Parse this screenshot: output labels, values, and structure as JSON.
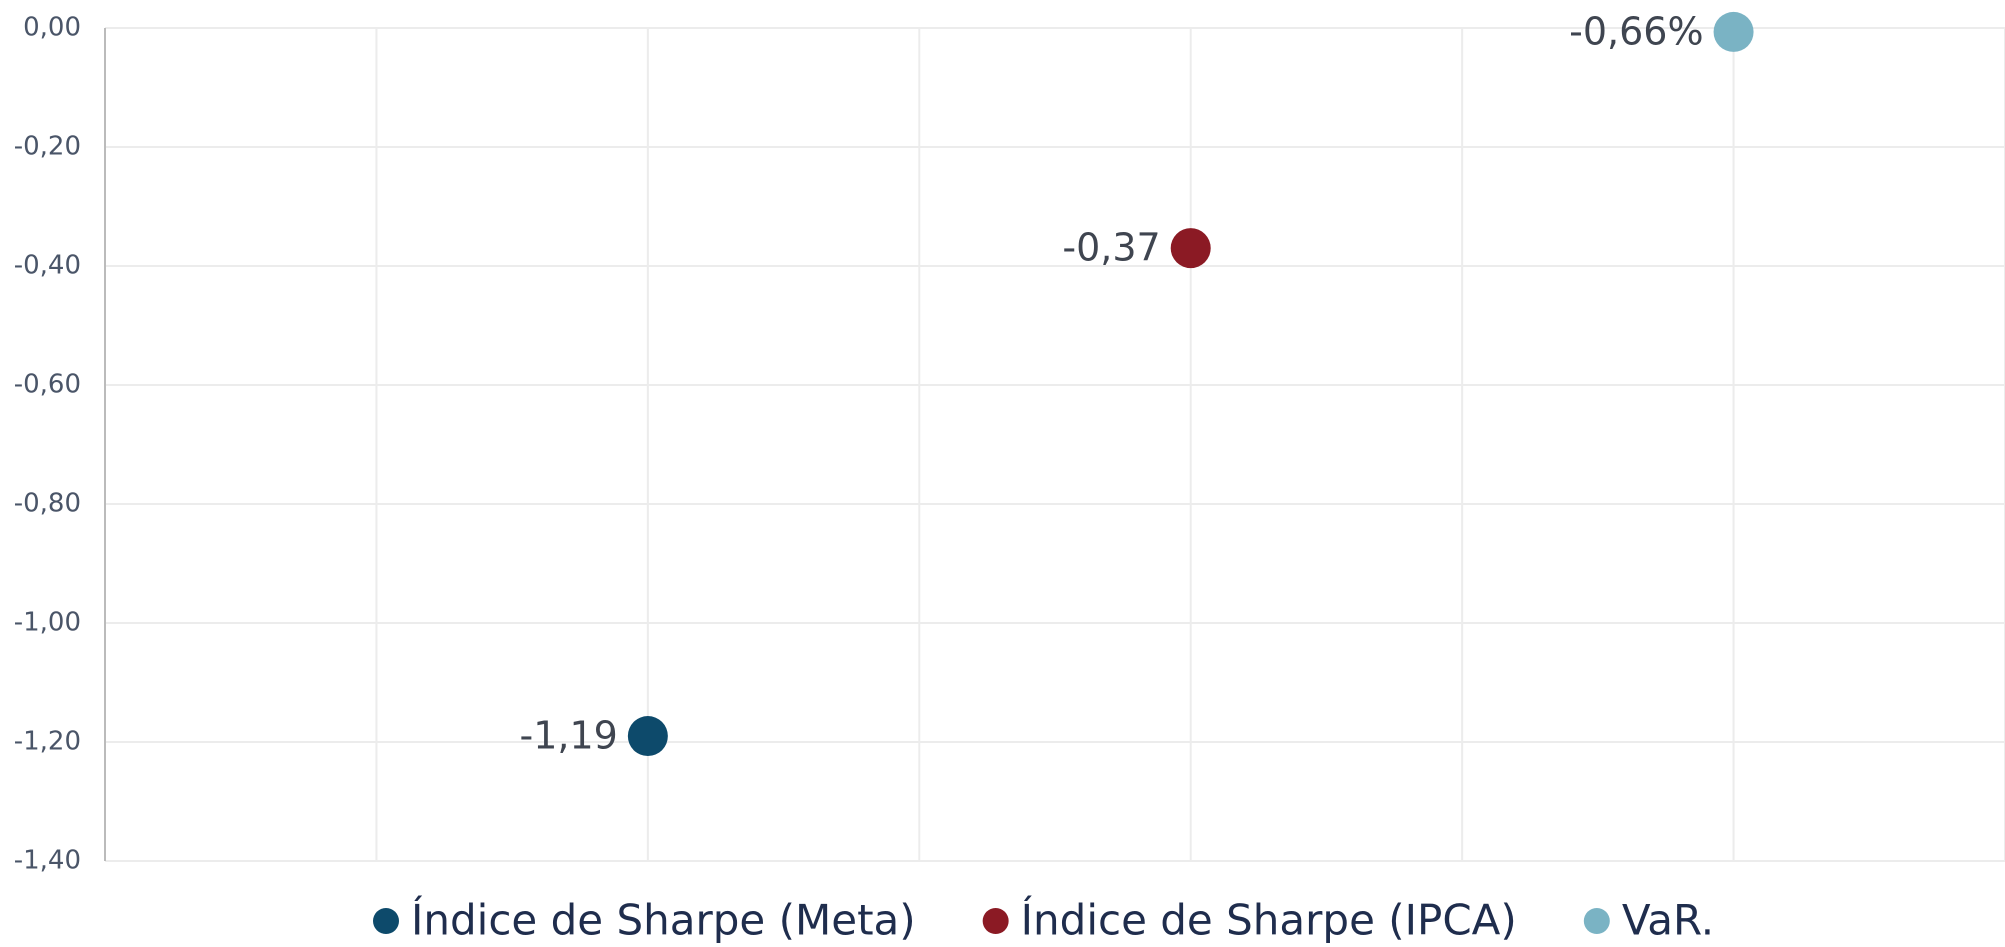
{
  "chart_data": {
    "type": "scatter",
    "series": [
      {
        "name": "Índice de Sharpe (Meta)",
        "color": "#0d4a6b",
        "x": [
          2
        ],
        "values": [
          -1.19
        ],
        "value_labels": [
          "-1,19"
        ]
      },
      {
        "name": "Índice de Sharpe (IPCA)",
        "color": "#8b1a24",
        "x": [
          4
        ],
        "values": [
          -0.37
        ],
        "value_labels": [
          "-0,37"
        ]
      },
      {
        "name": "VaR.",
        "color": "#7ab3c4",
        "x": [
          6
        ],
        "values": [
          -0.0066
        ],
        "value_labels": [
          "-0,66%"
        ]
      }
    ],
    "xlim": [
      0,
      7
    ],
    "xticks": [
      0,
      1,
      2,
      3,
      4,
      5,
      6,
      7
    ],
    "ylim": [
      -1.4,
      0
    ],
    "yticks": [
      {
        "value": 0,
        "label": "0,00"
      },
      {
        "value": -0.2,
        "label": "-0,20"
      },
      {
        "value": -0.4,
        "label": "-0,40"
      },
      {
        "value": -0.6,
        "label": "-0,60"
      },
      {
        "value": -0.8,
        "label": "-0,80"
      },
      {
        "value": -1,
        "label": "-1,00"
      },
      {
        "value": -1.2,
        "label": "-1,20"
      },
      {
        "value": -1.4,
        "label": "-1,40"
      }
    ],
    "grid": true,
    "legend": "bottom"
  }
}
